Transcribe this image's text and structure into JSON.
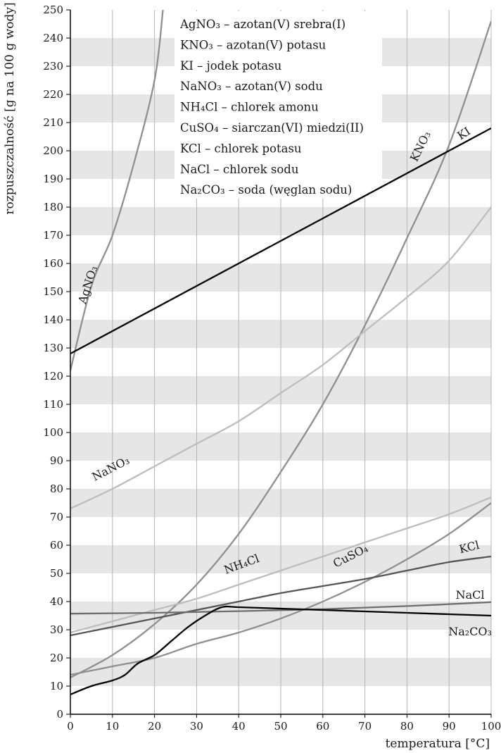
{
  "chart_data": {
    "type": "line",
    "title": "",
    "xlabel": "temperatura [°C]",
    "ylabel": "rozpuszczalność [g na 100 g wody]",
    "xlim": [
      0,
      100
    ],
    "ylim": [
      0,
      250
    ],
    "xticks": [
      "0",
      "10",
      "20",
      "30",
      "40",
      "50",
      "60",
      "70",
      "80",
      "90",
      "100"
    ],
    "yticks": [
      "0",
      "10",
      "20",
      "30",
      "40",
      "50",
      "60",
      "70",
      "80",
      "90",
      "100",
      "110",
      "120",
      "130",
      "140",
      "150",
      "160",
      "170",
      "180",
      "190",
      "200",
      "210",
      "220",
      "230",
      "240",
      "250"
    ],
    "grid": "vertical lines every 10 °C; alternating grey/white horizontal bands every 10 g",
    "legend_placement": "top-center",
    "legend": [
      {
        "formula": "AgNO₃",
        "text": " – azotan(V) srebra(I)"
      },
      {
        "formula": "KNO₃",
        "text": " – azotan(V) potasu"
      },
      {
        "formula": "KI",
        "text": " – jodek potasu"
      },
      {
        "formula": "NaNO₃",
        "text": " – azotan(V) sodu"
      },
      {
        "formula": "NH₄Cl",
        "text": " – chlorek amonu"
      },
      {
        "formula": "CuSO₄",
        "text": " – siarczan(VI) miedzi(II)"
      },
      {
        "formula": "KCl",
        "text": " – chlorek potasu"
      },
      {
        "formula": "NaCl",
        "text": " – chlorek sodu"
      },
      {
        "formula": "Na₂CO₃",
        "text": " – soda (węglan sodu)"
      }
    ],
    "series": [
      {
        "name": "AgNO₃",
        "color": "#8f8f8f",
        "x": [
          0,
          5,
          10,
          15,
          20,
          22
        ],
        "y": [
          122,
          152,
          170,
          195,
          225,
          250
        ]
      },
      {
        "name": "KNO₃",
        "color": "#8f8f8f",
        "x": [
          0,
          10,
          20,
          30,
          40,
          50,
          60,
          70,
          80,
          90,
          100
        ],
        "y": [
          13,
          21,
          32,
          46,
          64,
          86,
          110,
          138,
          169,
          202,
          246
        ]
      },
      {
        "name": "KI",
        "color": "#000000",
        "x": [
          0,
          100
        ],
        "y": [
          128,
          208
        ]
      },
      {
        "name": "NaNO₃",
        "color": "#bdbdbd",
        "x": [
          0,
          10,
          20,
          30,
          40,
          50,
          60,
          70,
          80,
          90,
          100
        ],
        "y": [
          73,
          80,
          88,
          96,
          104,
          114,
          124,
          136,
          148,
          161,
          180
        ]
      },
      {
        "name": "NH₄Cl",
        "color": "#bdbdbd",
        "x": [
          0,
          10,
          20,
          30,
          40,
          50,
          60,
          70,
          80,
          90,
          100
        ],
        "y": [
          29,
          33,
          37,
          41,
          46,
          51,
          56,
          61,
          66,
          71,
          77
        ]
      },
      {
        "name": "CuSO₄",
        "color": "#8f8f8f",
        "x": [
          0,
          10,
          20,
          30,
          40,
          50,
          60,
          70,
          80,
          90,
          100
        ],
        "y": [
          14,
          17,
          20,
          25,
          29,
          34,
          40,
          47,
          55,
          64,
          75
        ]
      },
      {
        "name": "KCl",
        "color": "#555555",
        "x": [
          0,
          10,
          20,
          30,
          40,
          50,
          60,
          70,
          80,
          90,
          100
        ],
        "y": [
          28,
          31,
          34,
          37,
          40,
          43,
          45.5,
          48,
          51,
          54,
          56
        ]
      },
      {
        "name": "NaCl",
        "color": "#6e6e6e",
        "x": [
          0,
          20,
          40,
          60,
          80,
          100
        ],
        "y": [
          35.7,
          36,
          36.6,
          37.3,
          38.4,
          39.8
        ]
      },
      {
        "name": "Na₂CO₃",
        "color": "#000000",
        "x": [
          0,
          5,
          10,
          13,
          16,
          20,
          24,
          28,
          32,
          36,
          40,
          50,
          60,
          70,
          80,
          90,
          100
        ],
        "y": [
          7,
          10,
          12,
          14,
          18,
          21,
          26,
          31,
          35,
          38,
          38,
          37.5,
          37,
          36.5,
          36,
          35.5,
          35
        ]
      }
    ],
    "curve_labels": [
      {
        "series": "AgNO₃",
        "formula": "AgNO₃",
        "x": 5,
        "y": 152,
        "angle": -72
      },
      {
        "series": "KNO₃",
        "formula": "KNO₃",
        "x": 84,
        "y": 201,
        "angle": -64
      },
      {
        "series": "KI",
        "formula": "KI",
        "x": 94,
        "y": 205,
        "angle": -33
      },
      {
        "series": "NaNO₃",
        "formula": "NaNO₃",
        "x": 10,
        "y": 86,
        "angle": -27
      },
      {
        "series": "NH₄Cl",
        "formula": "NH₄Cl",
        "x": 41,
        "y": 52,
        "angle": -20
      },
      {
        "series": "CuSO₄",
        "formula": "CuSO₄",
        "x": 67,
        "y": 55,
        "angle": -27
      },
      {
        "series": "KCl",
        "formula": "KCl",
        "x": 95,
        "y": 58,
        "angle": -14
      },
      {
        "series": "NaCl",
        "formula": "NaCl",
        "x": 95,
        "y": 41,
        "angle": 0
      },
      {
        "series": "Na₂CO₃",
        "formula": "Na₂CO₃",
        "x": 95,
        "y": 28,
        "angle": 0
      }
    ]
  }
}
